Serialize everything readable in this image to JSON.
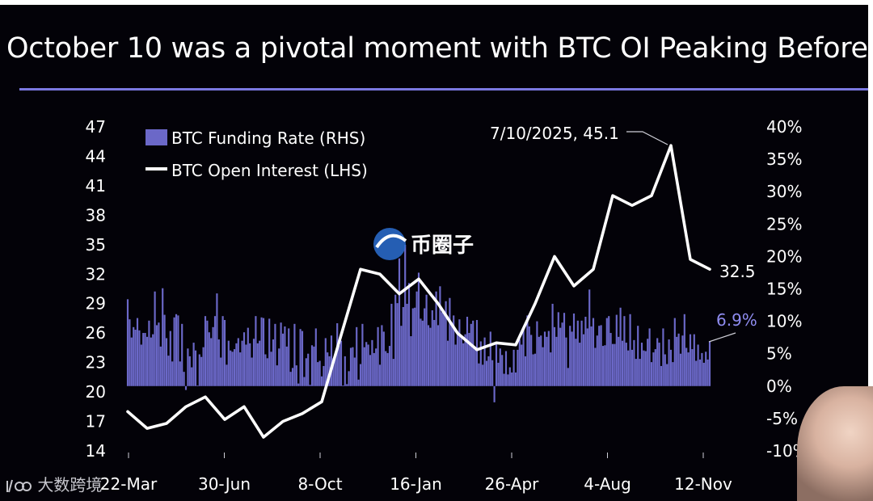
{
  "title": "October 10 was a pivotal moment with BTC OI Peaking Before",
  "colors": {
    "background": "#030208",
    "accent": "#7b78e0",
    "bars": "#6b68c8",
    "line": "#ffffff",
    "text": "#ffffff",
    "highlight": "#8f8cf0"
  },
  "watermark": {
    "icon": "dashuju-logo-icon",
    "text": "大数跨境"
  },
  "stamp": {
    "icon": "bqz-logo-icon",
    "text": "币圈子"
  },
  "avatar": {
    "icon": "presenter-avatar-icon"
  },
  "chart_data": {
    "type": "bar-line-combo",
    "legend": [
      "BTC Funding Rate (RHS)",
      "BTC Open Interest (LHS)"
    ],
    "legend_position": "top-left",
    "grid": false,
    "x_ticks": [
      "22-Mar",
      "30-Jun",
      "8-Oct",
      "16-Jan",
      "26-Apr",
      "4-Aug",
      "12-Nov"
    ],
    "y_left": {
      "range": [
        14,
        47
      ],
      "ticks": [
        "47",
        "44",
        "41",
        "38",
        "35",
        "32",
        "29",
        "26",
        "23",
        "20",
        "17",
        "14"
      ]
    },
    "y_right": {
      "range": [
        -10,
        40
      ],
      "ticks": [
        "40%",
        "35%",
        "30%",
        "25%",
        "20%",
        "15%",
        "10%",
        "5%",
        "0%",
        "-5%",
        "-10%"
      ]
    },
    "annotations": [
      {
        "text": "7/10/2025, 45.1",
        "series": "BTC Open Interest (LHS)"
      },
      {
        "text": "32.5",
        "series": "BTC Open Interest (LHS)"
      },
      {
        "text": "6.9%",
        "series": "BTC Funding Rate (RHS)"
      }
    ],
    "series": [
      {
        "name": "BTC Open Interest (LHS)",
        "kind": "line",
        "axis": "left",
        "x": [
          "22-Mar-2022",
          "11-Apr-2022",
          "01-May-2022",
          "21-May-2022",
          "10-Jun-2022",
          "30-Jun-2022",
          "20-Jul-2022",
          "09-Aug-2022",
          "29-Aug-2022",
          "18-Sep-2022",
          "08-Oct-2022",
          "28-Oct-2022",
          "17-Nov-2022",
          "07-Dec-2022",
          "27-Dec-2022",
          "16-Jan-2023",
          "05-Feb-2023",
          "25-Feb-2023",
          "17-Mar-2023",
          "06-Apr-2023",
          "26-Apr-2023",
          "16-May-2023",
          "05-Jun-2023",
          "25-Jun-2023",
          "15-Jul-2023",
          "04-Aug-2023",
          "24-Aug-2023",
          "13-Sep-2023",
          "03-Oct-2023",
          "23-Oct-2023",
          "12-Nov-2023"
        ],
        "values": [
          18.0,
          16.3,
          16.8,
          18.5,
          19.5,
          17.2,
          18.5,
          15.4,
          17.0,
          17.8,
          19.0,
          25.8,
          32.5,
          32.0,
          30.0,
          31.5,
          29.0,
          26.0,
          24.3,
          25.0,
          24.8,
          29.0,
          33.8,
          30.8,
          32.5,
          40.0,
          39.0,
          40.0,
          45.1,
          33.5,
          32.5
        ]
      },
      {
        "name": "BTC Funding Rate (RHS)",
        "kind": "bar",
        "axis": "right",
        "x_range": [
          "22-Mar-2022",
          "12-Nov-2023"
        ],
        "values_percent": [
          13.4,
          10.3,
          7.5,
          9.1,
          8.7,
          10.5,
          8.6,
          6.4,
          8.2,
          8.2,
          7.6,
          10.1,
          7.5,
          8.0,
          14.6,
          9.4,
          9.8,
          6.1,
          15.1,
          11.0,
          7.4,
          4.7,
          8.5,
          3.8,
          10.6,
          11.1,
          10.9,
          3.8,
          9.6,
          2.2,
          -0.6,
          5.8,
          4.6,
          2.9,
          6.7,
          5.5,
          0.1,
          4.9,
          4.5,
          6.0,
          10.8,
          10.1,
          8.3,
          7.4,
          9.1,
          10.8,
          14.3,
          7.2,
          4.4,
          10.8,
          10.2,
          3.3,
          7.0,
          5.5,
          5.3,
          5.7,
          6.6,
          7.4,
          5.2,
          7.0,
          8.3,
          6.4,
          9.0,
          6.6,
          4.4,
          7.3,
          10.8,
          6.6,
          7.0,
          10.6,
          10.5,
          4.9,
          4.3,
          10.4,
          5.3,
          7.2,
          9.6,
          3.2,
          5.8,
          9.8,
          8.1,
          9.2,
          6.1,
          8.9,
          2.2,
          2.8,
          9.6,
          3.2,
          0.4,
          8.8,
          8.5,
          1.4,
          4.3,
          5.0,
          0.2,
          6.3,
          6.1,
          8.9,
          3.7,
          3.9,
          1.5,
          3.1,
          7.4,
          5.2,
          4.6,
          7.8,
          4.3,
          4.4,
          9.7,
          6.3,
          7.0,
          0.1,
          4.6,
          0.3,
          2.3,
          5.9,
          6.0,
          4.4,
          9.1,
          1.0,
          3.4,
          9.6,
          6.0,
          6.8,
          6.4,
          4.8,
          7.1,
          5.1,
          5.8,
          9.1,
          3.3,
          9.4,
          8.4,
          5.4,
          5.1,
          6.2,
          12.7,
          4.2,
          14.1,
          12.8,
          19.7,
          9.3,
          12.2,
          21.8,
          12.7,
          15.9,
          7.7,
          12.0,
          12.1,
          14.6,
          17.5,
          10.4,
          10.1,
          12.0,
          14.1,
          9.4,
          9.0,
          11.7,
          10.2,
          14.6,
          9.4,
          15.4,
          11.4,
          11.4,
          13.1,
          7.0,
          13.6,
          9.8,
          10.9,
          6.4,
          8.5,
          10.3,
          7.4,
          6.6,
          8.0,
          10.7,
          8.2,
          9.6,
          10.1,
          5.7,
          10.2,
          3.5,
          6.9,
          3.3,
          7.5,
          3.9,
          4.6,
          8.4,
          4.0,
          -2.5,
          6.8,
          3.6,
          5.8,
          4.8,
          1.9,
          5.4,
          1.8,
          2.9,
          2.1,
          5.6,
          2.1,
          5.6,
          7.2,
          6.4,
          8.9,
          4.6,
          10.9,
          9.2,
          7.9,
          4.9,
          5.0,
          10.0,
          7.6,
          7.8,
          6.0,
          8.4,
          7.6,
          8.5,
          5.2,
          12.7,
          9.1,
          7.6,
          11.4,
          9.0,
          9.8,
          11.3,
          7.5,
          2.8,
          9.3,
          8.4,
          11.2,
          7.3,
          10.1,
          6.7,
          10.1,
          8.0,
          10.7,
          8.9,
          14.9,
          9.2,
          10.5,
          5.9,
          7.8,
          9.3,
          9.4,
          6.2,
          6.3,
          10.5,
          10.8,
          8.2,
          6.5,
          6.5,
          11.0,
          7.6,
          12.1,
          7.0,
          10.8,
          6.7,
          5.5,
          11.1,
          5.6,
          7.1,
          4.2,
          9.3,
          4.2,
          6.7,
          5.5,
          5.4,
          7.3,
          8.9,
          3.7,
          5.2,
          5.7,
          7.4,
          6.7,
          3.1,
          8.9,
          4.9,
          3.4,
          7.2,
          5.6,
          3.7,
          10.5,
          7.6,
          8.1,
          5.0,
          7.8,
          11.1,
          5.9,
          5.2,
          8.0,
          5.7,
          8.0,
          3.9,
          6.4,
          4.1,
          5.1,
          3.6,
          5.3,
          4.1,
          6.9
        ]
      }
    ]
  }
}
